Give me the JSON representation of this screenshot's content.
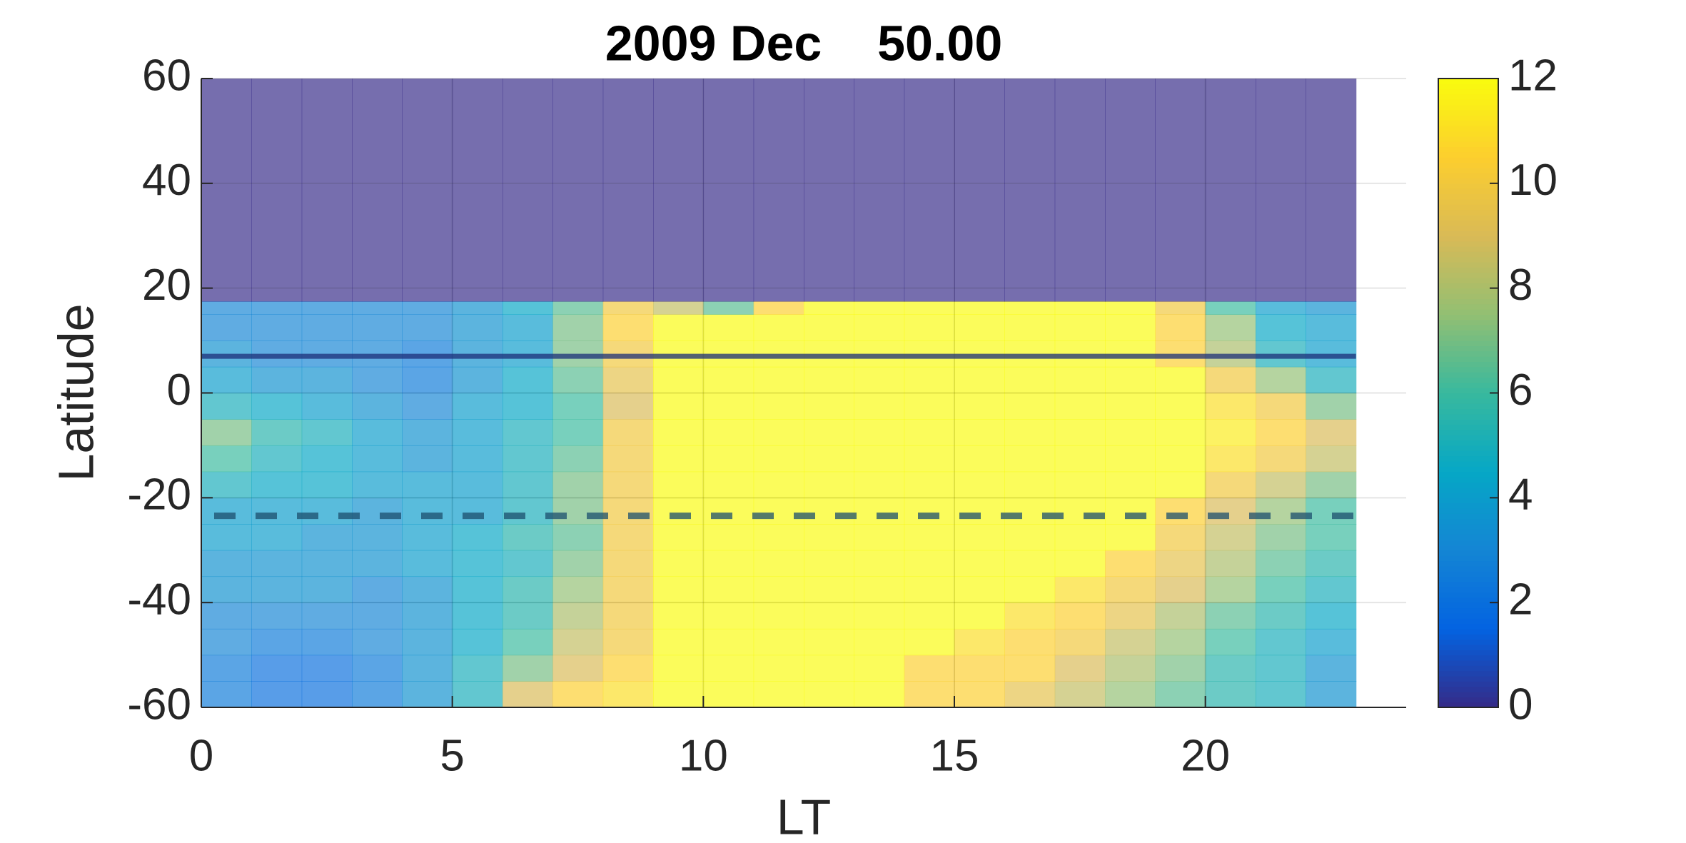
{
  "chart_data": {
    "type": "heatmap",
    "title": "2009 Dec    50.00",
    "x_label": "LT",
    "y_label": "Latitude",
    "x": [
      0,
      1,
      2,
      3,
      4,
      5,
      6,
      7,
      8,
      9,
      10,
      11,
      12,
      13,
      14,
      15,
      16,
      17,
      18,
      19,
      20,
      21,
      22,
      23
    ],
    "y": [
      -60,
      -55,
      -50,
      -45,
      -40,
      -35,
      -30,
      -25,
      -20,
      -15,
      -10,
      -5,
      0,
      5,
      10,
      15,
      17.5,
      60
    ],
    "z": [
      [
        2.5,
        2,
        2,
        2.5,
        3.5,
        5,
        9,
        10.5,
        11,
        12,
        12,
        12,
        12,
        12,
        10.5,
        10.5,
        9.5,
        8.5,
        7.5,
        6.5,
        5.5,
        5,
        3.5
      ],
      [
        2.5,
        2,
        2,
        2.5,
        3.5,
        5,
        7,
        9,
        10.5,
        12,
        12,
        12,
        12,
        12,
        10.5,
        10.5,
        10.5,
        9,
        8,
        7,
        5.5,
        5,
        3.5
      ],
      [
        3,
        2.5,
        2.5,
        3,
        3.5,
        4.5,
        6,
        8.5,
        10,
        12,
        12,
        12,
        12,
        12,
        12,
        11,
        10.5,
        10,
        8.5,
        7.5,
        6,
        5,
        4
      ],
      [
        3,
        3,
        3,
        3,
        3.5,
        4.5,
        5.5,
        8,
        10,
        12,
        12,
        12,
        12,
        12,
        12,
        12,
        11,
        10.5,
        9.5,
        8,
        6.5,
        5.5,
        4.5
      ],
      [
        3.5,
        3.5,
        3.5,
        3,
        3.5,
        4.5,
        5.5,
        7.5,
        10,
        12,
        12,
        12,
        12,
        12,
        12,
        12,
        12,
        11,
        10,
        9,
        7.5,
        6,
        5
      ],
      [
        3.5,
        3.5,
        3.5,
        3.5,
        4,
        4.5,
        5,
        7,
        10,
        12,
        12,
        12,
        12,
        12,
        12,
        12,
        12,
        12,
        10.5,
        9.5,
        8,
        6.5,
        5.5
      ],
      [
        4,
        4,
        3.5,
        3.5,
        4,
        4.5,
        5.5,
        6.5,
        10,
        12,
        12,
        12,
        12,
        12,
        12,
        12,
        12,
        12,
        12,
        10,
        8.5,
        7,
        6
      ],
      [
        4,
        4,
        4,
        3.5,
        4,
        4,
        5,
        7,
        10,
        12,
        12,
        12,
        12,
        12,
        12,
        12,
        12,
        12,
        12,
        10.5,
        9,
        7.5,
        6
      ],
      [
        5,
        4.5,
        4.5,
        4,
        4,
        4,
        5,
        7,
        10,
        12,
        12,
        12,
        12,
        12,
        12,
        12,
        12,
        12,
        12,
        12,
        10,
        8.5,
        7
      ],
      [
        6,
        5,
        4.5,
        4,
        3.5,
        4,
        5,
        6.5,
        10,
        12,
        12,
        12,
        12,
        12,
        12,
        12,
        12,
        12,
        12,
        12,
        11,
        10,
        8.5
      ],
      [
        7,
        5.5,
        5,
        4,
        3.5,
        4,
        5,
        6,
        10,
        12,
        12,
        12,
        12,
        12,
        12,
        12,
        12,
        12,
        12,
        12,
        11.5,
        10.5,
        9
      ],
      [
        5,
        4.5,
        4,
        3.5,
        3,
        4,
        4.5,
        6,
        9,
        12,
        12,
        12,
        12,
        12,
        12,
        12,
        12,
        12,
        12,
        12,
        11,
        10,
        7
      ],
      [
        4,
        3.5,
        3.5,
        3,
        2.5,
        3.5,
        4.5,
        6.5,
        9.5,
        12,
        12,
        12,
        12,
        12,
        12,
        12,
        12,
        12,
        12,
        12,
        10,
        7.5,
        5
      ],
      [
        3.5,
        3,
        3,
        3,
        2.5,
        3.5,
        4,
        7,
        10,
        12,
        12,
        12,
        12,
        12,
        12,
        12,
        12,
        12,
        12,
        10.5,
        8,
        5,
        4
      ],
      [
        3,
        3,
        3,
        3,
        3,
        3.5,
        4,
        7,
        10.5,
        12,
        12,
        12,
        12,
        12,
        12,
        12,
        12,
        12,
        12,
        10.5,
        7.5,
        4.5,
        4
      ],
      [
        3,
        3,
        3,
        3,
        3,
        3.5,
        4.5,
        6.5,
        10,
        8.5,
        6.5,
        10.5,
        12,
        12,
        12,
        12,
        12,
        12,
        12,
        10,
        6,
        4,
        3.5
      ],
      [
        0,
        0,
        0,
        0,
        0,
        0,
        0,
        0,
        0,
        0,
        0,
        0,
        0,
        0,
        0,
        0,
        0,
        0,
        0,
        0,
        0,
        0,
        0
      ]
    ],
    "xlim": [
      0,
      24
    ],
    "ylim": [
      -60,
      60
    ],
    "xticks": [
      0,
      5,
      10,
      15,
      20
    ],
    "yticks": [
      -60,
      -40,
      -20,
      0,
      20,
      40,
      60
    ],
    "clim": [
      0,
      12
    ],
    "cticks": [
      0,
      2,
      4,
      6,
      8,
      10,
      12
    ],
    "alpha": 0.68,
    "grid": true,
    "colormap": [
      "#352a87",
      "#0363e1",
      "#1485d4",
      "#06a7c6",
      "#38b99e",
      "#92bf73",
      "#d9ba56",
      "#fcce2e",
      "#f9fb0e"
    ],
    "reference_lines": [
      {
        "value": 7,
        "style": "solid",
        "color": "#1c2f78"
      },
      {
        "value": -23.44,
        "style": "dashed",
        "color": "#1c4f6e"
      }
    ]
  }
}
